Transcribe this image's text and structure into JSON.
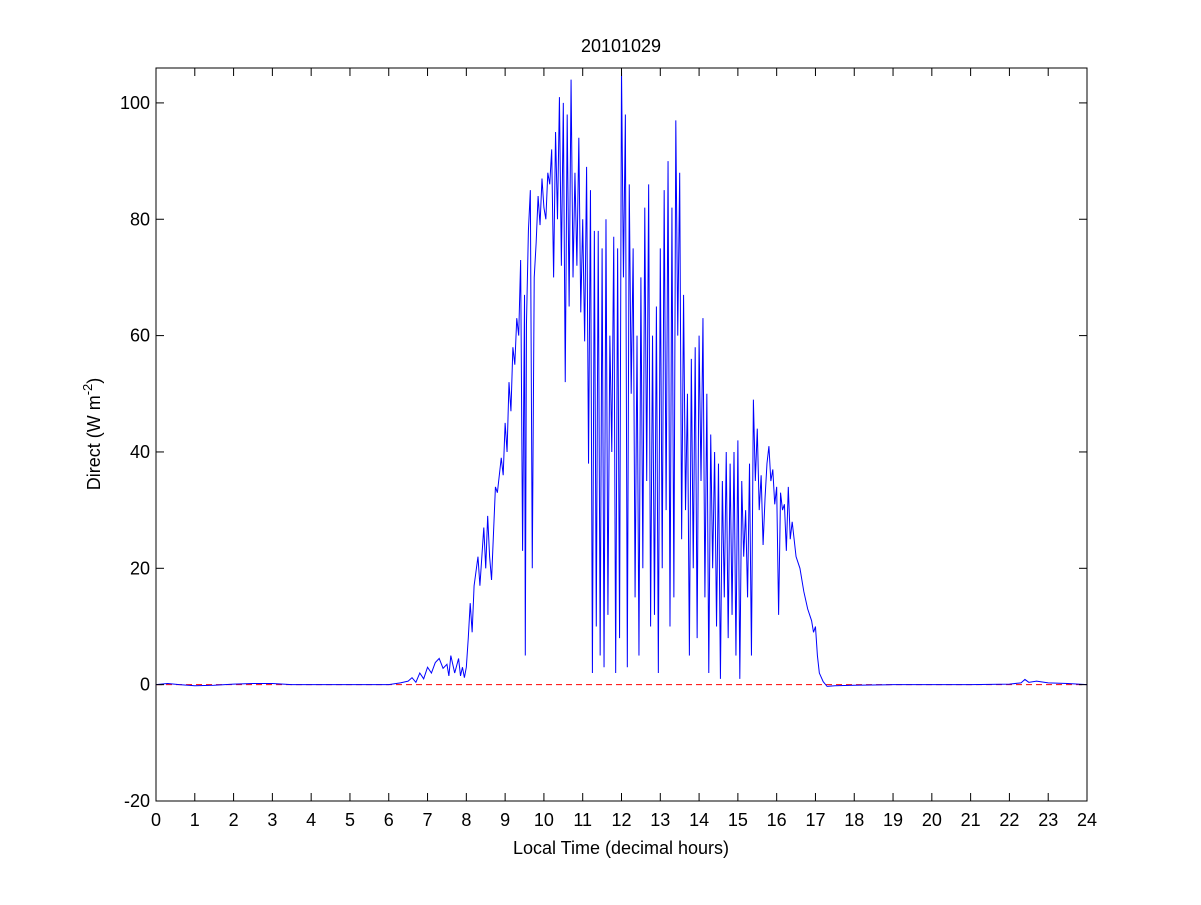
{
  "chart_data": {
    "type": "line",
    "title": "20101029",
    "xlabel": "Local Time (decimal hours)",
    "ylabel_main": "Direct (W m",
    "ylabel_sup": "-2",
    "ylabel_tail": ")",
    "xlim": [
      0,
      24
    ],
    "ylim": [
      -20,
      106
    ],
    "x_ticks": [
      0,
      1,
      2,
      3,
      4,
      5,
      6,
      7,
      8,
      9,
      10,
      11,
      12,
      13,
      14,
      15,
      16,
      17,
      18,
      19,
      20,
      21,
      22,
      23,
      24
    ],
    "y_ticks": [
      -20,
      0,
      20,
      40,
      60,
      80,
      100
    ],
    "grid": false,
    "reference_line": {
      "y": 0,
      "color": "#ff0000",
      "style": "dashed"
    },
    "series": [
      {
        "color": "#0000ff",
        "points": [
          [
            0.0,
            0.0
          ],
          [
            0.3,
            0.2
          ],
          [
            0.6,
            0.0
          ],
          [
            1.0,
            -0.2
          ],
          [
            1.5,
            -0.1
          ],
          [
            2.0,
            0.1
          ],
          [
            2.5,
            0.2
          ],
          [
            3.0,
            0.2
          ],
          [
            3.5,
            0.0
          ],
          [
            4.0,
            0.0
          ],
          [
            5.0,
            0.0
          ],
          [
            6.0,
            0.0
          ],
          [
            6.3,
            0.3
          ],
          [
            6.5,
            0.6
          ],
          [
            6.6,
            1.2
          ],
          [
            6.7,
            0.4
          ],
          [
            6.8,
            2.0
          ],
          [
            6.9,
            1.0
          ],
          [
            7.0,
            3.0
          ],
          [
            7.1,
            2.0
          ],
          [
            7.2,
            3.8
          ],
          [
            7.3,
            4.5
          ],
          [
            7.4,
            2.8
          ],
          [
            7.5,
            3.5
          ],
          [
            7.55,
            1.5
          ],
          [
            7.6,
            5.0
          ],
          [
            7.7,
            2.0
          ],
          [
            7.8,
            4.5
          ],
          [
            7.85,
            1.5
          ],
          [
            7.9,
            3.0
          ],
          [
            7.95,
            1.2
          ],
          [
            8.0,
            3.0
          ],
          [
            8.05,
            8.0
          ],
          [
            8.1,
            14.0
          ],
          [
            8.15,
            9.0
          ],
          [
            8.2,
            17.0
          ],
          [
            8.3,
            22.0
          ],
          [
            8.35,
            17.0
          ],
          [
            8.45,
            27.0
          ],
          [
            8.5,
            20.0
          ],
          [
            8.55,
            29.0
          ],
          [
            8.6,
            22.0
          ],
          [
            8.65,
            18.0
          ],
          [
            8.7,
            26.0
          ],
          [
            8.75,
            34.0
          ],
          [
            8.8,
            33.0
          ],
          [
            8.9,
            39.0
          ],
          [
            8.95,
            36.0
          ],
          [
            9.0,
            45.0
          ],
          [
            9.05,
            40.0
          ],
          [
            9.1,
            52.0
          ],
          [
            9.15,
            47.0
          ],
          [
            9.2,
            58.0
          ],
          [
            9.25,
            55.0
          ],
          [
            9.3,
            63.0
          ],
          [
            9.35,
            60.0
          ],
          [
            9.4,
            73.0
          ],
          [
            9.45,
            23.0
          ],
          [
            9.5,
            67.0
          ],
          [
            9.52,
            5.0
          ],
          [
            9.55,
            62.0
          ],
          [
            9.6,
            78.0
          ],
          [
            9.65,
            85.0
          ],
          [
            9.7,
            20.0
          ],
          [
            9.75,
            70.0
          ],
          [
            9.8,
            76.0
          ],
          [
            9.85,
            84.0
          ],
          [
            9.9,
            79.0
          ],
          [
            9.95,
            87.0
          ],
          [
            10.0,
            82.0
          ],
          [
            10.05,
            80.0
          ],
          [
            10.1,
            88.0
          ],
          [
            10.15,
            86.0
          ],
          [
            10.2,
            92.0
          ],
          [
            10.25,
            70.0
          ],
          [
            10.3,
            95.0
          ],
          [
            10.35,
            80.0
          ],
          [
            10.4,
            101.0
          ],
          [
            10.45,
            72.0
          ],
          [
            10.5,
            100.0
          ],
          [
            10.55,
            52.0
          ],
          [
            10.6,
            98.0
          ],
          [
            10.65,
            65.0
          ],
          [
            10.7,
            104.0
          ],
          [
            10.75,
            70.0
          ],
          [
            10.8,
            88.0
          ],
          [
            10.85,
            72.0
          ],
          [
            10.9,
            94.0
          ],
          [
            10.95,
            64.0
          ],
          [
            11.0,
            80.0
          ],
          [
            11.05,
            59.0
          ],
          [
            11.1,
            89.0
          ],
          [
            11.15,
            38.0
          ],
          [
            11.2,
            85.0
          ],
          [
            11.25,
            2.0
          ],
          [
            11.3,
            78.0
          ],
          [
            11.35,
            10.0
          ],
          [
            11.4,
            78.0
          ],
          [
            11.45,
            5.0
          ],
          [
            11.5,
            75.0
          ],
          [
            11.55,
            3.0
          ],
          [
            11.6,
            80.0
          ],
          [
            11.65,
            12.0
          ],
          [
            11.7,
            60.0
          ],
          [
            11.75,
            40.0
          ],
          [
            11.8,
            77.0
          ],
          [
            11.85,
            2.0
          ],
          [
            11.9,
            75.0
          ],
          [
            11.95,
            8.0
          ],
          [
            12.0,
            106.0
          ],
          [
            12.05,
            70.0
          ],
          [
            12.1,
            98.0
          ],
          [
            12.15,
            3.0
          ],
          [
            12.2,
            86.0
          ],
          [
            12.25,
            50.0
          ],
          [
            12.3,
            75.0
          ],
          [
            12.35,
            15.0
          ],
          [
            12.4,
            60.0
          ],
          [
            12.45,
            5.0
          ],
          [
            12.5,
            70.0
          ],
          [
            12.55,
            20.0
          ],
          [
            12.6,
            82.0
          ],
          [
            12.65,
            35.0
          ],
          [
            12.7,
            86.0
          ],
          [
            12.75,
            10.0
          ],
          [
            12.8,
            60.0
          ],
          [
            12.85,
            12.0
          ],
          [
            12.9,
            65.0
          ],
          [
            12.95,
            2.0
          ],
          [
            13.0,
            75.0
          ],
          [
            13.05,
            20.0
          ],
          [
            13.1,
            85.0
          ],
          [
            13.15,
            30.0
          ],
          [
            13.2,
            90.0
          ],
          [
            13.25,
            10.0
          ],
          [
            13.3,
            82.0
          ],
          [
            13.35,
            15.0
          ],
          [
            13.4,
            97.0
          ],
          [
            13.45,
            60.0
          ],
          [
            13.5,
            88.0
          ],
          [
            13.55,
            25.0
          ],
          [
            13.6,
            67.0
          ],
          [
            13.65,
            30.0
          ],
          [
            13.7,
            50.0
          ],
          [
            13.75,
            5.0
          ],
          [
            13.8,
            56.0
          ],
          [
            13.85,
            20.0
          ],
          [
            13.9,
            58.0
          ],
          [
            13.95,
            8.0
          ],
          [
            14.0,
            60.0
          ],
          [
            14.05,
            35.0
          ],
          [
            14.1,
            63.0
          ],
          [
            14.15,
            15.0
          ],
          [
            14.2,
            50.0
          ],
          [
            14.25,
            2.0
          ],
          [
            14.3,
            43.0
          ],
          [
            14.35,
            20.0
          ],
          [
            14.4,
            40.0
          ],
          [
            14.45,
            10.0
          ],
          [
            14.5,
            38.0
          ],
          [
            14.55,
            1.0
          ],
          [
            14.6,
            35.0
          ],
          [
            14.65,
            15.0
          ],
          [
            14.7,
            40.0
          ],
          [
            14.75,
            8.0
          ],
          [
            14.8,
            38.0
          ],
          [
            14.85,
            12.0
          ],
          [
            14.9,
            40.0
          ],
          [
            14.95,
            5.0
          ],
          [
            15.0,
            42.0
          ],
          [
            15.05,
            1.0
          ],
          [
            15.1,
            35.0
          ],
          [
            15.15,
            22.0
          ],
          [
            15.2,
            30.0
          ],
          [
            15.25,
            15.0
          ],
          [
            15.3,
            38.0
          ],
          [
            15.35,
            5.0
          ],
          [
            15.4,
            49.0
          ],
          [
            15.45,
            35.0
          ],
          [
            15.5,
            44.0
          ],
          [
            15.55,
            30.0
          ],
          [
            15.6,
            36.0
          ],
          [
            15.65,
            24.0
          ],
          [
            15.7,
            32.0
          ],
          [
            15.75,
            38.0
          ],
          [
            15.8,
            41.0
          ],
          [
            15.85,
            35.0
          ],
          [
            15.9,
            37.0
          ],
          [
            15.95,
            31.0
          ],
          [
            16.0,
            34.0
          ],
          [
            16.05,
            12.0
          ],
          [
            16.1,
            33.0
          ],
          [
            16.15,
            30.0
          ],
          [
            16.2,
            31.0
          ],
          [
            16.25,
            23.0
          ],
          [
            16.3,
            34.0
          ],
          [
            16.35,
            25.0
          ],
          [
            16.4,
            28.0
          ],
          [
            16.5,
            22.0
          ],
          [
            16.6,
            20.0
          ],
          [
            16.7,
            16.0
          ],
          [
            16.8,
            13.0
          ],
          [
            16.9,
            11.0
          ],
          [
            16.95,
            9.0
          ],
          [
            17.0,
            10.0
          ],
          [
            17.05,
            5.0
          ],
          [
            17.1,
            2.0
          ],
          [
            17.2,
            0.5
          ],
          [
            17.3,
            -0.3
          ],
          [
            17.5,
            -0.2
          ],
          [
            18.0,
            -0.1
          ],
          [
            19.0,
            0.0
          ],
          [
            20.0,
            0.0
          ],
          [
            21.0,
            0.0
          ],
          [
            22.0,
            0.1
          ],
          [
            22.3,
            0.3
          ],
          [
            22.4,
            0.9
          ],
          [
            22.5,
            0.4
          ],
          [
            22.7,
            0.6
          ],
          [
            23.0,
            0.3
          ],
          [
            23.5,
            0.2
          ],
          [
            24.0,
            0.0
          ]
        ]
      }
    ]
  }
}
